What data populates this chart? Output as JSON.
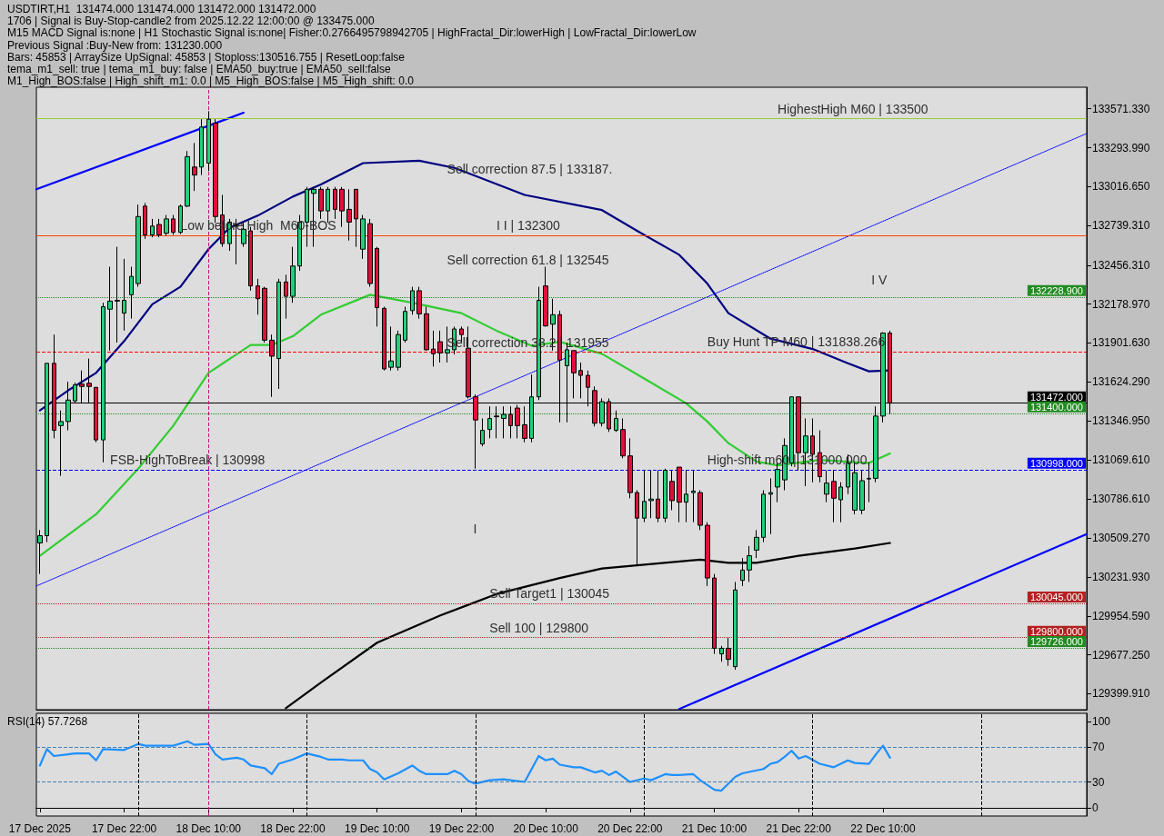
{
  "chart_data": [
    {
      "type": "candlestick",
      "title": "USDTIRT,H1  131474.000 131474.000 131472.000 131472.000",
      "annotations": [
        "1706 | Signal is Buy-Stop-candle2 from 2025.12.22 12:00:00 @ 133475.000",
        "M15 MACD Signal is:none | H1 Stochastic Signal is:none| Fisher:0.2766495798942705 | HighFractal_Dir:lowerHigh | LowFractal_Dir:lowerLow",
        "Previous Signal :Buy-New from: 131230.000",
        "Bars: 45853 | ArraySize UpSignal: 45853 | Stoploss:130516.755 | ResetLoop:false",
        "tema_m1_sell: true | tema_m1_buy: false | EMA50_buy:true | EMA50_sell:false",
        "M1_High_BOS:false | High_shift_m1: 0.0 | M5_High_BOS:false | M5_High_shift: 0.0",
        "Sell correction 87.5 | 133187.",
        "Sell correction 61.8 | 132545",
        "Sell correction 38.2 | 131955",
        "I",
        "I V",
        {
          "text": "HighestHigh M60 | 133500",
          "x": "2025-12-21T19:00",
          "y": 133500
        },
        {
          "text": "I I | 132300",
          "x": "2025-12-20T03:00",
          "y": 132667
        },
        {
          "text": "Low before High  M60-BOS",
          "x": "2025-12-18T06:00",
          "y": 132667
        },
        {
          "text": "Buy Hunt TP M60 | 131838.266",
          "x": "2025-12-21T09:00",
          "y": 131838.266
        },
        {
          "text": "High-shift m60 | 131000.000",
          "x": "2025-12-21T09:00",
          "y": 130998
        },
        {
          "text": "FSB-HighToBreak | 130998",
          "x": "2025-12-17T20:00",
          "y": 130998
        },
        {
          "text": "Sell Target1 | 130045",
          "x": "2025-12-20T02:00",
          "y": 130045
        },
        {
          "text": "Sell 100 | 129800",
          "x": "2025-12-20T02:00",
          "y": 129800
        }
      ],
      "x": [
        "2025-12-17T10:00",
        "2025-12-17T11:00",
        "2025-12-17T12:00",
        "2025-12-17T13:00",
        "2025-12-17T14:00",
        "2025-12-17T15:00",
        "2025-12-17T16:00",
        "2025-12-17T17:00",
        "2025-12-17T18:00",
        "2025-12-17T19:00",
        "2025-12-17T20:00",
        "2025-12-17T21:00",
        "2025-12-17T22:00",
        "2025-12-17T23:00",
        "2025-12-18T00:00",
        "2025-12-18T01:00",
        "2025-12-18T02:00",
        "2025-12-18T03:00",
        "2025-12-18T04:00",
        "2025-12-18T05:00",
        "2025-12-18T06:00",
        "2025-12-18T07:00",
        "2025-12-18T08:00",
        "2025-12-18T09:00",
        "2025-12-18T10:00",
        "2025-12-18T11:00",
        "2025-12-18T12:00",
        "2025-12-18T13:00",
        "2025-12-18T14:00",
        "2025-12-18T15:00",
        "2025-12-18T16:00",
        "2025-12-18T17:00",
        "2025-12-18T18:00",
        "2025-12-18T19:00",
        "2025-12-18T20:00",
        "2025-12-18T21:00",
        "2025-12-18T22:00",
        "2025-12-18T23:00",
        "2025-12-19T00:00",
        "2025-12-19T01:00",
        "2025-12-19T02:00",
        "2025-12-19T03:00",
        "2025-12-19T04:00",
        "2025-12-19T05:00",
        "2025-12-19T06:00",
        "2025-12-19T07:00",
        "2025-12-19T08:00",
        "2025-12-19T09:00",
        "2025-12-19T10:00",
        "2025-12-19T11:00",
        "2025-12-19T12:00",
        "2025-12-19T13:00",
        "2025-12-19T14:00",
        "2025-12-19T15:00",
        "2025-12-19T16:00",
        "2025-12-19T17:00",
        "2025-12-19T18:00",
        "2025-12-19T19:00",
        "2025-12-19T20:00",
        "2025-12-19T21:00",
        "2025-12-19T22:00",
        "2025-12-19T23:00",
        "2025-12-20T00:00",
        "2025-12-20T01:00",
        "2025-12-20T02:00",
        "2025-12-20T03:00",
        "2025-12-20T04:00",
        "2025-12-20T05:00",
        "2025-12-20T06:00",
        "2025-12-20T07:00",
        "2025-12-20T08:00",
        "2025-12-20T09:00",
        "2025-12-20T10:00",
        "2025-12-20T11:00",
        "2025-12-20T12:00",
        "2025-12-20T13:00",
        "2025-12-20T14:00",
        "2025-12-20T15:00",
        "2025-12-20T16:00",
        "2025-12-20T17:00",
        "2025-12-20T18:00",
        "2025-12-20T19:00",
        "2025-12-20T20:00",
        "2025-12-20T21:00",
        "2025-12-20T22:00",
        "2025-12-20T23:00",
        "2025-12-21T00:00",
        "2025-12-21T01:00",
        "2025-12-21T02:00",
        "2025-12-21T03:00",
        "2025-12-21T04:00",
        "2025-12-21T05:00",
        "2025-12-21T06:00",
        "2025-12-21T07:00",
        "2025-12-21T08:00",
        "2025-12-21T09:00",
        "2025-12-21T10:00",
        "2025-12-21T11:00",
        "2025-12-21T12:00",
        "2025-12-21T13:00",
        "2025-12-21T14:00",
        "2025-12-21T15:00",
        "2025-12-21T16:00",
        "2025-12-21T17:00",
        "2025-12-21T18:00",
        "2025-12-21T19:00",
        "2025-12-21T20:00",
        "2025-12-21T21:00",
        "2025-12-21T22:00",
        "2025-12-21T23:00",
        "2025-12-22T00:00",
        "2025-12-22T01:00",
        "2025-12-22T02:00",
        "2025-12-22T03:00",
        "2025-12-22T04:00",
        "2025-12-22T05:00",
        "2025-12-22T06:00",
        "2025-12-22T07:00",
        "2025-12-22T08:00",
        "2025-12-22T09:00",
        "2025-12-22T10:00",
        "2025-12-22T11:00"
      ],
      "ohlc": [
        [
          130475,
          130567,
          130254,
          130527
        ],
        [
          130527,
          131756,
          130481,
          131756
        ],
        [
          131756,
          131961,
          131221,
          131278
        ],
        [
          131312,
          131420,
          130954,
          131341
        ],
        [
          131341,
          131625,
          131278,
          131494
        ],
        [
          131488,
          131619,
          131477,
          131602
        ],
        [
          131608,
          131705,
          131477,
          131591
        ],
        [
          131614,
          131790,
          131477,
          131591
        ],
        [
          131585,
          131585,
          131193,
          131210
        ],
        [
          131210,
          132188,
          131050,
          132160
        ],
        [
          132142,
          132445,
          131847,
          132200
        ],
        [
          132205,
          132587,
          131904,
          132200
        ],
        [
          132114,
          132501,
          131989,
          132205
        ],
        [
          132245,
          132445,
          132075,
          132376
        ],
        [
          132325,
          132888,
          132302,
          132803
        ],
        [
          132877,
          132900,
          132644,
          132672
        ],
        [
          132672,
          132786,
          132655,
          132735
        ],
        [
          132746,
          132786,
          132655,
          132672
        ],
        [
          132684,
          132814,
          132667,
          132786
        ],
        [
          132786,
          132814,
          132672,
          132690
        ],
        [
          132690,
          132888,
          132678,
          132877
        ],
        [
          132877,
          133270,
          132871,
          133230
        ],
        [
          133156,
          133327,
          132985,
          133099
        ],
        [
          133156,
          133497,
          133099,
          133441
        ],
        [
          133184,
          133554,
          133127,
          133497
        ],
        [
          133469,
          133497,
          132758,
          132803
        ],
        [
          132814,
          132957,
          132587,
          132610
        ],
        [
          132610,
          132786,
          132558,
          132763
        ],
        [
          132741,
          132786,
          132462,
          132735
        ],
        [
          132610,
          132758,
          132587,
          132712
        ],
        [
          132701,
          132729,
          132274,
          132308
        ],
        [
          132308,
          132359,
          132103,
          132217
        ],
        [
          132291,
          132302,
          131904,
          131921
        ],
        [
          131921,
          131961,
          131517,
          131807
        ],
        [
          131790,
          132359,
          131574,
          132336
        ],
        [
          132336,
          132388,
          132075,
          132234
        ],
        [
          132234,
          132587,
          132188,
          132450
        ],
        [
          132450,
          132814,
          132416,
          132763
        ],
        [
          132763,
          133014,
          132587,
          132997
        ],
        [
          132968,
          133014,
          132587,
          132997
        ],
        [
          132997,
          133014,
          132786,
          132843
        ],
        [
          132843,
          133014,
          132758,
          132997
        ],
        [
          132997,
          133014,
          132786,
          132854
        ],
        [
          132997,
          133014,
          132729,
          132843
        ],
        [
          132854,
          132997,
          132632,
          132763
        ],
        [
          132997,
          132997,
          132587,
          132786
        ],
        [
          132570,
          132814,
          132501,
          132786
        ],
        [
          132752,
          132786,
          132302,
          132325
        ],
        [
          132575,
          132587,
          132018,
          132154
        ],
        [
          132148,
          132160,
          131705,
          131716
        ],
        [
          131728,
          132018,
          131705,
          131773
        ],
        [
          131728,
          131989,
          131705,
          131961
        ],
        [
          131921,
          132160,
          131904,
          132126
        ],
        [
          132132,
          132302,
          132103,
          132274
        ],
        [
          132274,
          132302,
          132075,
          132109
        ],
        [
          132109,
          132160,
          131847,
          131853
        ],
        [
          131858,
          131989,
          131733,
          131824
        ],
        [
          131910,
          131989,
          131762,
          131830
        ],
        [
          131830,
          132018,
          131762,
          131853
        ],
        [
          131853,
          132018,
          131819,
          132001
        ],
        [
          132001,
          132018,
          131904,
          131961
        ],
        [
          131864,
          132018,
          131506,
          131517
        ],
        [
          131517,
          131534,
          131005,
          131352
        ],
        [
          131181,
          131363,
          131164,
          131278
        ],
        [
          131284,
          131449,
          131221,
          131363
        ],
        [
          131380,
          131449,
          131221,
          131375
        ],
        [
          131363,
          131449,
          131221,
          131392
        ],
        [
          131392,
          131449,
          131221,
          131312
        ],
        [
          131437,
          131460,
          131221,
          131312
        ],
        [
          131318,
          131449,
          131193,
          131221
        ],
        [
          131221,
          131676,
          131193,
          131517
        ],
        [
          131517,
          132302,
          131494,
          132205
        ],
        [
          132308,
          132445,
          132018,
          132023
        ],
        [
          132035,
          132217,
          131847,
          132103
        ],
        [
          132103,
          132132,
          131335,
          131779
        ],
        [
          131739,
          131904,
          131335,
          131853
        ],
        [
          131847,
          131847,
          131506,
          131688
        ],
        [
          131705,
          131762,
          131506,
          131670
        ],
        [
          131670,
          131705,
          131449,
          131585
        ],
        [
          131562,
          131591,
          131306,
          131329
        ],
        [
          131329,
          131506,
          131306,
          131483
        ],
        [
          131483,
          131506,
          131267,
          131289
        ],
        [
          131278,
          131420,
          131267,
          131363
        ],
        [
          131284,
          131363,
          131079,
          131096
        ],
        [
          131096,
          131221,
          130794,
          130834
        ],
        [
          130834,
          130851,
          130322,
          130652
        ],
        [
          130652,
          130993,
          130623,
          130771
        ],
        [
          130777,
          130993,
          130652,
          130788
        ],
        [
          130788,
          130993,
          130623,
          130652
        ],
        [
          130652,
          131005,
          130623,
          130993
        ],
        [
          130914,
          130993,
          130709,
          130777
        ],
        [
          131016,
          131016,
          130623,
          130766
        ],
        [
          130766,
          130993,
          130623,
          130823
        ],
        [
          130834,
          130993,
          130623,
          130845
        ],
        [
          130834,
          130851,
          130567,
          130601
        ],
        [
          130601,
          130623,
          130168,
          130225
        ],
        [
          130225,
          130254,
          129684,
          129724
        ],
        [
          129684,
          129741,
          129628,
          129724
        ],
        [
          129724,
          129798,
          129599,
          129645
        ],
        [
          129593,
          130197,
          129571,
          130140
        ],
        [
          130208,
          130367,
          130168,
          130282
        ],
        [
          130282,
          130453,
          130197,
          130384
        ],
        [
          130424,
          130567,
          130367,
          130515
        ],
        [
          130515,
          130851,
          130481,
          130823
        ],
        [
          130823,
          130936,
          130538,
          130834
        ],
        [
          130874,
          131050,
          130766,
          130999
        ],
        [
          130925,
          131221,
          130851,
          131170
        ],
        [
          131045,
          131517,
          131022,
          131517
        ],
        [
          131517,
          131517,
          130993,
          131119
        ],
        [
          131119,
          131363,
          130880,
          131238
        ],
        [
          131238,
          131363,
          130908,
          131107
        ],
        [
          131119,
          131278,
          130908,
          130948
        ],
        [
          130823,
          130993,
          130766,
          130902
        ],
        [
          130914,
          130993,
          130623,
          130794
        ],
        [
          130783,
          130908,
          130623,
          130874
        ],
        [
          130874,
          131107,
          130823,
          131045
        ],
        [
          130709,
          131050,
          130680,
          130976
        ],
        [
          130709,
          130993,
          130680,
          130919
        ],
        [
          130931,
          131050,
          130766,
          130936
        ],
        [
          130936,
          131449,
          130908,
          131380
        ],
        [
          131380,
          131978,
          131335,
          131972
        ],
        [
          131972,
          131989,
          131392,
          131472
        ]
      ],
      "series": [
        {
          "type": "line",
          "color": "#000080",
          "x": [
            "2025-12-17T10:00",
            "2025-12-17T14:00",
            "2025-12-17T18:00",
            "2025-12-17T22:00",
            "2025-12-18T02:00",
            "2025-12-18T06:00",
            "2025-12-18T10:00",
            "2025-12-18T13:00",
            "2025-12-18T17:00",
            "2025-12-18T22:00",
            "2025-12-19T02:00",
            "2025-12-19T08:00",
            "2025-12-19T16:00",
            "2025-12-19T21:00",
            "2025-12-20T07:00",
            "2025-12-20T18:00",
            "2025-12-20T23:00",
            "2025-12-21T05:00",
            "2025-12-21T09:00",
            "2025-12-21T12:00",
            "2025-12-21T18:00",
            "2025-12-22T00:00",
            "2025-12-22T05:00",
            "2025-12-22T08:00",
            "2025-12-22T11:00"
          ],
          "values": [
            131420,
            131562,
            131688,
            131915,
            132177,
            132302,
            132570,
            132723,
            132809,
            132945,
            133031,
            133184,
            133201,
            133150,
            132957,
            132849,
            132701,
            132530,
            132325,
            132114,
            131932,
            131858,
            131756,
            131699,
            131705
          ]
        },
        {
          "type": "line",
          "color": "#32cd32",
          "x": [
            "2025-12-17T10:00",
            "2025-12-17T18:00",
            "2025-12-18T00:00",
            "2025-12-18T05:00",
            "2025-12-18T10:00",
            "2025-12-18T16:00",
            "2025-12-18T19:00",
            "2025-12-18T22:00",
            "2025-12-19T02:00",
            "2025-12-19T09:00",
            "2025-12-19T15:00",
            "2025-12-19T22:00",
            "2025-12-20T03:00",
            "2025-12-20T08:00",
            "2025-12-20T12:00",
            "2025-12-20T18:00",
            "2025-12-21T00:00",
            "2025-12-21T06:00",
            "2025-12-21T09:00",
            "2025-12-21T12:00",
            "2025-12-21T16:00",
            "2025-12-21T19:00",
            "2025-12-22T01:00",
            "2025-12-22T08:00",
            "2025-12-22T11:00"
          ],
          "values": [
            130384,
            130680,
            131005,
            131312,
            131688,
            131887,
            131887,
            131949,
            132103,
            132245,
            132188,
            132114,
            131989,
            131881,
            131910,
            131824,
            131648,
            131471,
            131341,
            131187,
            131056,
            131028,
            131067,
            131045,
            131113
          ]
        },
        {
          "type": "line",
          "color": "#000000",
          "x": [
            "2025-12-18T21:00",
            "2025-12-19T02:00",
            "2025-12-19T10:00",
            "2025-12-19T19:00",
            "2025-12-20T03:00",
            "2025-12-20T12:00",
            "2025-12-20T18:00",
            "2025-12-20T23:00",
            "2025-12-21T08:00",
            "2025-12-21T12:00",
            "2025-12-21T16:00",
            "2025-12-21T22:00",
            "2025-12-22T06:00",
            "2025-12-22T11:00"
          ],
          "values": [
            129297,
            129479,
            129764,
            129958,
            130111,
            130225,
            130293,
            130316,
            130356,
            130333,
            130333,
            130384,
            130436,
            130475
          ]
        },
        {
          "type": "line",
          "color": "#0000ff",
          "x": [
            "2025-12-17T09:30",
            "2025-12-18T15:00"
          ],
          "values": [
            132997,
            133543
          ]
        },
        {
          "type": "line",
          "color": "#0000ff",
          "x": [
            "2025-12-21T05:00",
            "2025-12-23T15:00"
          ],
          "values": [
            129291,
            130538
          ]
        },
        {
          "type": "line",
          "color": "#0000ff",
          "line_style": "dotted",
          "x": [
            "2025-12-17T09:30",
            "2025-12-23T15:00"
          ],
          "values": [
            130168,
            133395
          ]
        }
      ],
      "xlim": [
        "2025-12-17T09:30",
        "2025-12-23T15:00"
      ],
      "xticks": [
        {
          "value": "2025-12-17T10:00",
          "label": null
        },
        {
          "value": "2025-12-17T22:00",
          "label": null
        },
        {
          "value": "2025-12-18T10:00",
          "label": null
        },
        {
          "value": "2025-12-18T22:00",
          "label": null
        },
        {
          "value": "2025-12-19T10:00",
          "label": null
        },
        {
          "value": "2025-12-19T22:00",
          "label": null
        },
        {
          "value": "2025-12-20T10:00",
          "label": null
        },
        {
          "value": "2025-12-20T22:00",
          "label": null
        },
        {
          "value": "2025-12-21T10:00",
          "label": null
        },
        {
          "value": "2025-12-21T22:00",
          "label": null
        },
        {
          "value": "2025-12-22T10:00",
          "label": null
        }
      ],
      "ylim": [
        129286,
        133725
      ],
      "yticks": [
        {
          "value": 133571.33,
          "label": "133571.330"
        },
        {
          "value": 133293.99,
          "label": "133293.990"
        },
        {
          "value": 133016.65,
          "label": "133016.650"
        },
        {
          "value": 132739.31,
          "label": "132739.310"
        },
        {
          "value": 132456.31,
          "label": "132456.310"
        },
        {
          "value": 132178.97,
          "label": "132178.970"
        },
        {
          "value": 131901.63,
          "label": "131901.630"
        },
        {
          "value": 131624.29,
          "label": "131624.290"
        },
        {
          "value": 131346.95,
          "label": "131346.950"
        },
        {
          "value": 131069.61,
          "label": "131069.610"
        },
        {
          "value": 130786.61,
          "label": "130786.610"
        },
        {
          "value": 130509.27,
          "label": "130509.270"
        },
        {
          "value": 130231.93,
          "label": "130231.930"
        },
        {
          "value": 129954.59,
          "label": "129954.590"
        },
        {
          "value": 129677.25,
          "label": "129677.250"
        },
        {
          "value": 129399.91,
          "label": "129399.910"
        }
      ],
      "ref_lines": [
        {
          "axis": "y",
          "value": 133500,
          "color": "#9acd32",
          "line_style": "solid"
        },
        {
          "axis": "y",
          "value": 132667,
          "color": "#ff4500",
          "line_style": "solid"
        },
        {
          "axis": "y",
          "value": 132228.9,
          "label": "132228.900",
          "color": "#228b22",
          "line_style": "dotted"
        },
        {
          "axis": "y",
          "value": 131838.266,
          "color": "#ff0000",
          "line_style": "dashed"
        },
        {
          "axis": "y",
          "value": 131472,
          "label": "131472.000",
          "color": "#000000",
          "line_style": "solid"
        },
        {
          "axis": "y",
          "value": 131400,
          "label": "131400.000",
          "color": "#228b22",
          "line_style": "dotted"
        },
        {
          "axis": "y",
          "value": 130998,
          "label": "130998.000",
          "color": "#0000ff",
          "line_style": "dashed"
        },
        {
          "axis": "y",
          "value": 130045,
          "label": "130045.000",
          "color": "#b22222",
          "line_style": "dotted"
        },
        {
          "axis": "y",
          "value": 129800,
          "label": "129800.000",
          "color": "#b22222",
          "line_style": "dotted"
        },
        {
          "axis": "y",
          "value": 129726,
          "label": "129726.000",
          "color": "#228b22",
          "line_style": "dotted"
        },
        {
          "axis": "x",
          "value": "2025-12-18T10:00",
          "color": "#c71585",
          "line_style": "dashed"
        }
      ],
      "tick_labels": "y"
    },
    {
      "type": "line",
      "title": "RSI(14) 57.7268",
      "color": "#1e90ff",
      "x": [
        "2025-12-17T10:00",
        "2025-12-17T11:00",
        "2025-12-17T12:00",
        "2025-12-17T14:00",
        "2025-12-17T15:00",
        "2025-12-17T17:00",
        "2025-12-17T18:00",
        "2025-12-17T19:00",
        "2025-12-17T22:00",
        "2025-12-18T00:00",
        "2025-12-18T01:00",
        "2025-12-18T03:00",
        "2025-12-18T05:00",
        "2025-12-18T07:00",
        "2025-12-18T08:00",
        "2025-12-18T10:00",
        "2025-12-18T11:00",
        "2025-12-18T12:00",
        "2025-12-18T14:00",
        "2025-12-18T15:00",
        "2025-12-18T16:00",
        "2025-12-18T18:00",
        "2025-12-18T19:00",
        "2025-12-18T20:00",
        "2025-12-18T22:00",
        "2025-12-19T00:00",
        "2025-12-19T02:00",
        "2025-12-19T03:00",
        "2025-12-19T05:00",
        "2025-12-19T06:00",
        "2025-12-19T08:00",
        "2025-12-19T09:00",
        "2025-12-19T10:00",
        "2025-12-19T11:00",
        "2025-12-19T13:00",
        "2025-12-19T15:00",
        "2025-12-19T16:00",
        "2025-12-19T17:00",
        "2025-12-19T19:00",
        "2025-12-19T20:00",
        "2025-12-19T21:00",
        "2025-12-19T22:00",
        "2025-12-19T23:00",
        "2025-12-20T00:00",
        "2025-12-20T02:00",
        "2025-12-20T04:00",
        "2025-12-20T07:00",
        "2025-12-20T08:00",
        "2025-12-20T09:00",
        "2025-12-20T10:00",
        "2025-12-20T11:00",
        "2025-12-20T12:00",
        "2025-12-20T14:00",
        "2025-12-20T15:00",
        "2025-12-20T17:00",
        "2025-12-20T18:00",
        "2025-12-20T19:00",
        "2025-12-20T20:00",
        "2025-12-20T22:00",
        "2025-12-21T00:00",
        "2025-12-21T01:00",
        "2025-12-21T03:00",
        "2025-12-21T04:00",
        "2025-12-21T05:00",
        "2025-12-21T07:00",
        "2025-12-21T08:00",
        "2025-12-21T10:00",
        "2025-12-21T11:00",
        "2025-12-21T13:00",
        "2025-12-21T14:00",
        "2025-12-21T17:00",
        "2025-12-21T18:00",
        "2025-12-21T19:00",
        "2025-12-21T20:00",
        "2025-12-21T21:00",
        "2025-12-21T22:00",
        "2025-12-21T23:00",
        "2025-12-22T01:00",
        "2025-12-22T03:00",
        "2025-12-22T05:00",
        "2025-12-22T06:00",
        "2025-12-22T08:00",
        "2025-12-22T09:00",
        "2025-12-22T10:00",
        "2025-12-22T11:00"
      ],
      "values": [
        49,
        68,
        60,
        62,
        63,
        63,
        55,
        68,
        67,
        74,
        72,
        72,
        72,
        77,
        73,
        74,
        62,
        56,
        58,
        56,
        49,
        46,
        39,
        51,
        56,
        63,
        59,
        56,
        56,
        55,
        55,
        45,
        41,
        33,
        40,
        49,
        43,
        39,
        39,
        39,
        43,
        39,
        31,
        28,
        32,
        33,
        30,
        45,
        60,
        55,
        57,
        50,
        47,
        47,
        41,
        43,
        38,
        42,
        30,
        34,
        32,
        39,
        38,
        38,
        39,
        32,
        21,
        20,
        36,
        40,
        45,
        51,
        53,
        59,
        66,
        57,
        60,
        51,
        47,
        55,
        52,
        51,
        62,
        72,
        58
      ],
      "xlim": [
        "2025-12-17T09:30",
        "2025-12-23T15:00"
      ],
      "xticks": [
        {
          "value": "2025-12-17T10:00",
          "label": "17 Dec 2025"
        },
        {
          "value": "2025-12-17T22:00",
          "label": "17 Dec 22:00"
        },
        {
          "value": "2025-12-18T10:00",
          "label": "18 Dec 10:00"
        },
        {
          "value": "2025-12-18T22:00",
          "label": "18 Dec 22:00"
        },
        {
          "value": "2025-12-19T10:00",
          "label": "19 Dec 10:00"
        },
        {
          "value": "2025-12-19T22:00",
          "label": "19 Dec 22:00"
        },
        {
          "value": "2025-12-20T10:00",
          "label": "20 Dec 10:00"
        },
        {
          "value": "2025-12-20T22:00",
          "label": "20 Dec 22:00"
        },
        {
          "value": "2025-12-21T10:00",
          "label": "21 Dec 10:00"
        },
        {
          "value": "2025-12-21T22:00",
          "label": "21 Dec 22:00"
        },
        {
          "value": "2025-12-22T10:00",
          "label": "22 Dec 10:00"
        }
      ],
      "ylim": [
        -9.4,
        109.4
      ],
      "yticks": [
        0,
        30,
        70,
        100
      ],
      "ref_lines": [
        {
          "axis": "y",
          "value": 70,
          "color": "#4682b4",
          "line_style": "dashed"
        },
        {
          "axis": "y",
          "value": 30,
          "color": "#4682b4",
          "line_style": "dashed"
        },
        {
          "axis": "x",
          "value": "2025-12-18T00:00",
          "color": "#000000",
          "line_style": "dashed"
        },
        {
          "axis": "x",
          "value": "2025-12-18T10:00",
          "color": "#c71585",
          "line_style": "dashed"
        },
        {
          "axis": "x",
          "value": "2025-12-19T00:00",
          "color": "#000000",
          "line_style": "dashed"
        },
        {
          "axis": "x",
          "value": "2025-12-20T00:00",
          "color": "#000000",
          "line_style": "dashed"
        },
        {
          "axis": "x",
          "value": "2025-12-21T00:00",
          "color": "#000000",
          "line_style": "dashed"
        },
        {
          "axis": "x",
          "value": "2025-12-22T00:00",
          "color": "#000000",
          "line_style": "dashed"
        },
        {
          "axis": "x",
          "value": "2025-12-23T00:00",
          "color": "#000000",
          "line_style": "dashed"
        }
      ]
    }
  ]
}
